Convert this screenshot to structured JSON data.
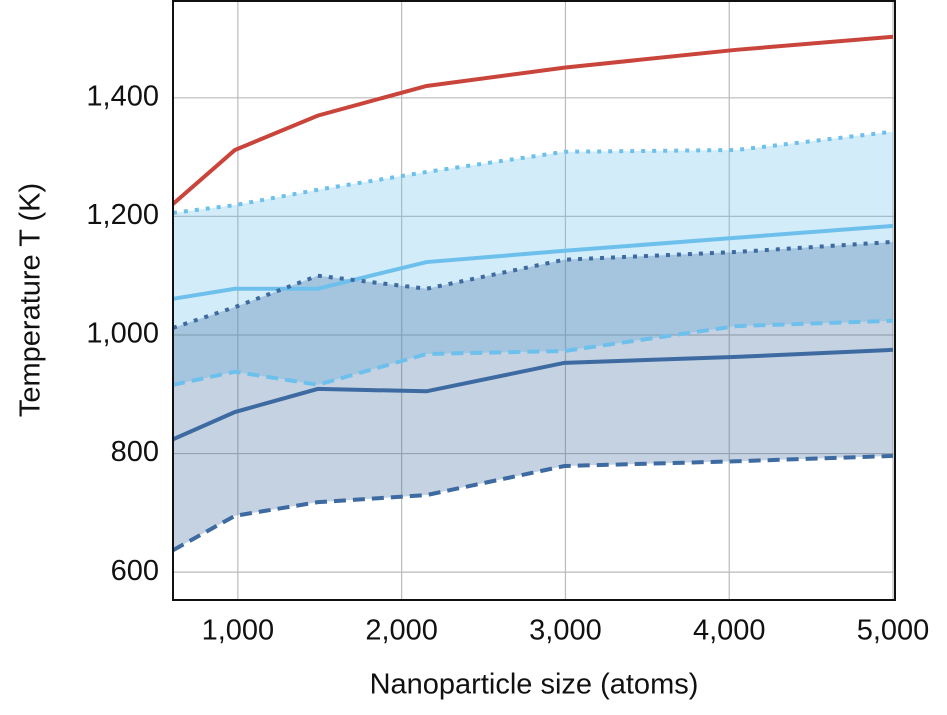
{
  "chart_data": {
    "type": "line",
    "x_label": "Nanoparticle size (atoms)",
    "y_label": "Temperature T (K)",
    "x": [
      604,
      982,
      1488,
      2152,
      2994,
      4043,
      5000
    ],
    "xlim": [
      604,
      5012
    ],
    "xticks": [
      {
        "value": 1000,
        "label": "1,000"
      },
      {
        "value": 2000,
        "label": "2,000"
      },
      {
        "value": 3000,
        "label": "3,000"
      },
      {
        "value": 4000,
        "label": "4,000"
      },
      {
        "value": 5000,
        "label": "5,000"
      }
    ],
    "ylim": [
      553,
      1565
    ],
    "yticks": [
      600,
      800,
      {
        "value": 1000,
        "label": "1,000"
      },
      {
        "value": 1200,
        "label": "1,200"
      },
      {
        "value": 1400,
        "label": "1,400"
      }
    ],
    "grid": true,
    "series": [
      {
        "color": "#c9453c",
        "values": [
          1221,
          1312,
          1370,
          1420,
          1451,
          1481,
          1503
        ]
      },
      {
        "color": "#6ec0ec",
        "values": [
          1061,
          1078,
          1078,
          1123,
          1142,
          1164,
          1184
        ],
        "upper": [
          1206,
          1219,
          1245,
          1275,
          1309,
          1312,
          1343
        ],
        "lower": [
          916,
          938,
          916,
          968,
          973,
          1015,
          1024
        ]
      },
      {
        "color": "#3d6aa0",
        "values": [
          824,
          870,
          909,
          905,
          953,
          963,
          975
        ],
        "upper": [
          1012,
          1047,
          1100,
          1078,
          1127,
          1140,
          1157
        ],
        "lower": [
          637,
          695,
          718,
          730,
          779,
          787,
          796
        ]
      }
    ]
  }
}
